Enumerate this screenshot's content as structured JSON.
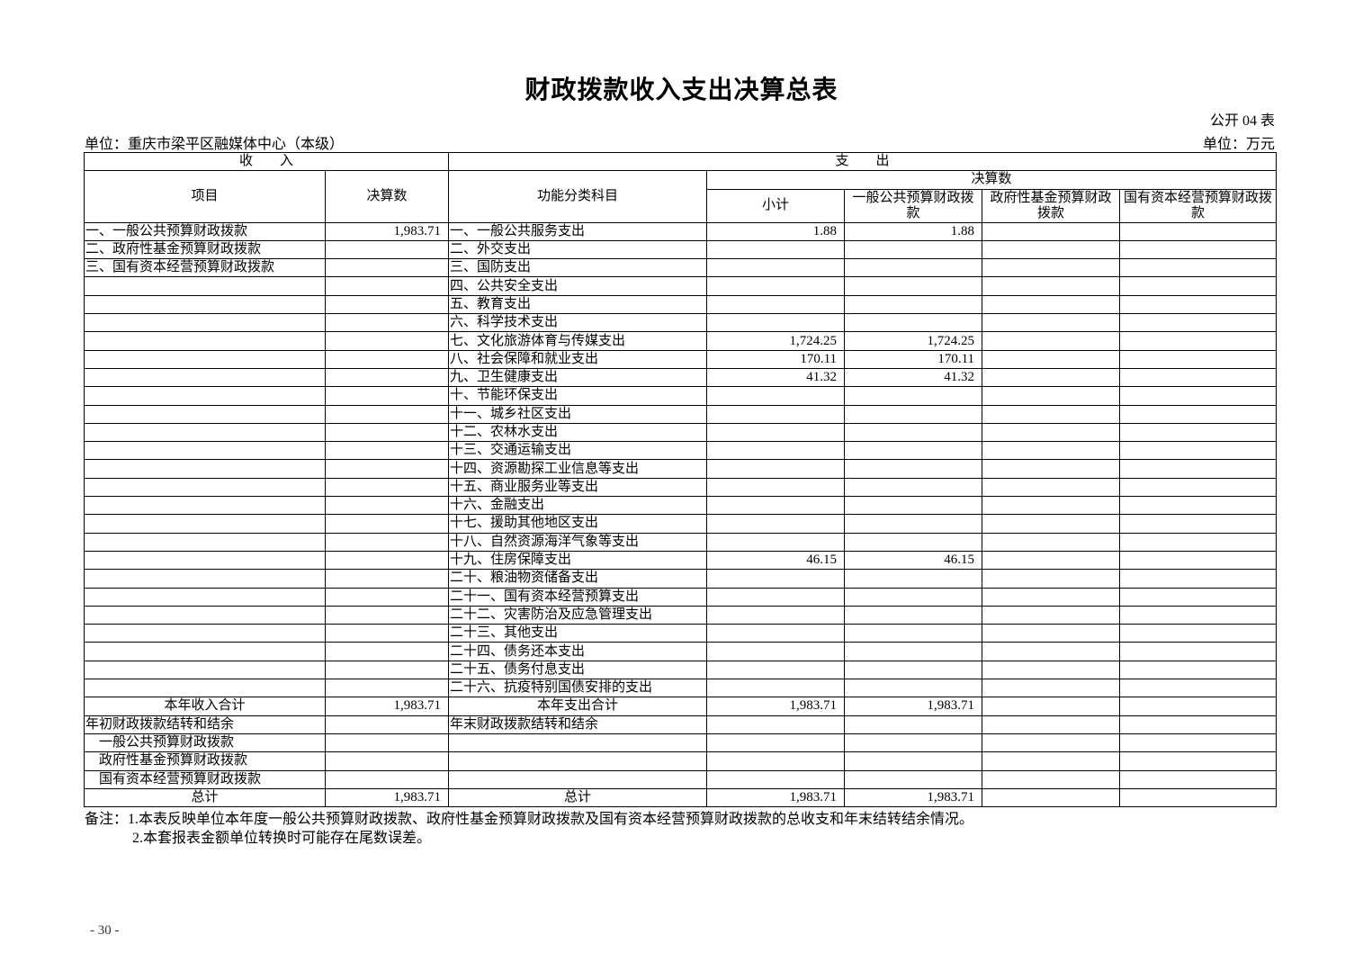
{
  "title": "财政拨款收入支出决算总表",
  "form_no": "公开 04 表",
  "unit_org": "单位：重庆市梁平区融媒体中心（本级）",
  "unit_currency": "单位：万元",
  "headers": {
    "income": "收　　入",
    "expense": "支　　出",
    "item": "项目",
    "amount": "决算数",
    "function_class": "功能分类科目",
    "final_amount": "决算数",
    "subtotal": "小计",
    "general": "一般公共预算财政拨款",
    "fund": "政府性基金预算财政拨款",
    "state_capital": "国有资本经营预算财政拨款"
  },
  "rows": [
    [
      "一、一般公共预算财政拨款",
      "1,983.71",
      "一、一般公共服务支出",
      "1.88",
      "1.88",
      "",
      ""
    ],
    [
      "二、政府性基金预算财政拨款",
      "",
      "二、外交支出",
      "",
      "",
      "",
      ""
    ],
    [
      "三、国有资本经营预算财政拨款",
      "",
      "三、国防支出",
      "",
      "",
      "",
      ""
    ],
    [
      "",
      "",
      "四、公共安全支出",
      "",
      "",
      "",
      ""
    ],
    [
      "",
      "",
      "五、教育支出",
      "",
      "",
      "",
      ""
    ],
    [
      "",
      "",
      "六、科学技术支出",
      "",
      "",
      "",
      ""
    ],
    [
      "",
      "",
      "七、文化旅游体育与传媒支出",
      "1,724.25",
      "1,724.25",
      "",
      ""
    ],
    [
      "",
      "",
      "八、社会保障和就业支出",
      "170.11",
      "170.11",
      "",
      ""
    ],
    [
      "",
      "",
      "九、卫生健康支出",
      "41.32",
      "41.32",
      "",
      ""
    ],
    [
      "",
      "",
      "十、节能环保支出",
      "",
      "",
      "",
      ""
    ],
    [
      "",
      "",
      "十一、城乡社区支出",
      "",
      "",
      "",
      ""
    ],
    [
      "",
      "",
      "十二、农林水支出",
      "",
      "",
      "",
      ""
    ],
    [
      "",
      "",
      "十三、交通运输支出",
      "",
      "",
      "",
      ""
    ],
    [
      "",
      "",
      "十四、资源勘探工业信息等支出",
      "",
      "",
      "",
      ""
    ],
    [
      "",
      "",
      "十五、商业服务业等支出",
      "",
      "",
      "",
      ""
    ],
    [
      "",
      "",
      "十六、金融支出",
      "",
      "",
      "",
      ""
    ],
    [
      "",
      "",
      "十七、援助其他地区支出",
      "",
      "",
      "",
      ""
    ],
    [
      "",
      "",
      "十八、自然资源海洋气象等支出",
      "",
      "",
      "",
      ""
    ],
    [
      "",
      "",
      "十九、住房保障支出",
      "46.15",
      "46.15",
      "",
      ""
    ],
    [
      "",
      "",
      "二十、粮油物资储备支出",
      "",
      "",
      "",
      ""
    ],
    [
      "",
      "",
      "二十一、国有资本经营预算支出",
      "",
      "",
      "",
      ""
    ],
    [
      "",
      "",
      "二十二、灾害防治及应急管理支出",
      "",
      "",
      "",
      ""
    ],
    [
      "",
      "",
      "二十三、其他支出",
      "",
      "",
      "",
      ""
    ],
    [
      "",
      "",
      "二十四、债务还本支出",
      "",
      "",
      "",
      ""
    ],
    [
      "",
      "",
      "二十五、债务付息支出",
      "",
      "",
      "",
      ""
    ],
    [
      "",
      "",
      "二十六、抗疫特别国债安排的支出",
      "",
      "",
      "",
      ""
    ]
  ],
  "summary_rows": [
    [
      "本年收入合计",
      "1,983.71",
      "本年支出合计",
      "1,983.71",
      "1,983.71",
      "",
      ""
    ],
    [
      "年初财政拨款结转和结余",
      "",
      "年末财政拨款结转和结余",
      "",
      "",
      "",
      ""
    ],
    [
      "一般公共预算财政拨款",
      "",
      "",
      "",
      "",
      "",
      ""
    ],
    [
      "政府性基金预算财政拨款",
      "",
      "",
      "",
      "",
      "",
      ""
    ],
    [
      "国有资本经营预算财政拨款",
      "",
      "",
      "",
      "",
      "",
      ""
    ],
    [
      "总计",
      "1,983.71",
      "总计",
      "1,983.71",
      "1,983.71",
      "",
      ""
    ]
  ],
  "notes": [
    "备注：1.本表反映单位本年度一般公共预算财政拨款、政府性基金预算财政拨款及国有资本经营预算财政拨款的总收支和年末结转结余情况。",
    "2.本套报表金额单位转换时可能存在尾数误差。"
  ],
  "page_number": "- 30 -"
}
